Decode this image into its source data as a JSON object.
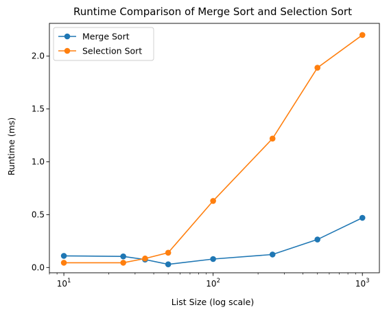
{
  "chart_data": {
    "type": "line",
    "title": "Runtime Comparison of Merge Sort and Selection Sort",
    "xlabel": "List Size (log scale)",
    "ylabel": "Runtime (ms)",
    "x_scale": "log",
    "xlim": [
      8,
      1300
    ],
    "ylim": [
      -0.05,
      2.31
    ],
    "grid": false,
    "legend_position": "top-left",
    "x": [
      10,
      25,
      35,
      50,
      100,
      250,
      500,
      1000
    ],
    "series": [
      {
        "name": "Merge Sort",
        "color": "#1f77b4",
        "values": [
          0.11,
          0.105,
          0.075,
          0.03,
          0.08,
          0.123,
          0.265,
          0.47
        ]
      },
      {
        "name": "Selection Sort",
        "color": "#ff7f0e",
        "values": [
          0.045,
          0.045,
          0.085,
          0.14,
          0.63,
          1.22,
          1.89,
          2.2
        ]
      }
    ],
    "x_ticks": [
      {
        "value": 10,
        "base": "10",
        "exp": "1"
      },
      {
        "value": 100,
        "base": "10",
        "exp": "2"
      },
      {
        "value": 1000,
        "base": "10",
        "exp": "3"
      }
    ],
    "y_ticks": [
      {
        "value": 0.0,
        "label": "0.0"
      },
      {
        "value": 0.5,
        "label": "0.5"
      },
      {
        "value": 1.0,
        "label": "1.0"
      },
      {
        "value": 1.5,
        "label": "1.5"
      },
      {
        "value": 2.0,
        "label": "2.0"
      }
    ]
  }
}
